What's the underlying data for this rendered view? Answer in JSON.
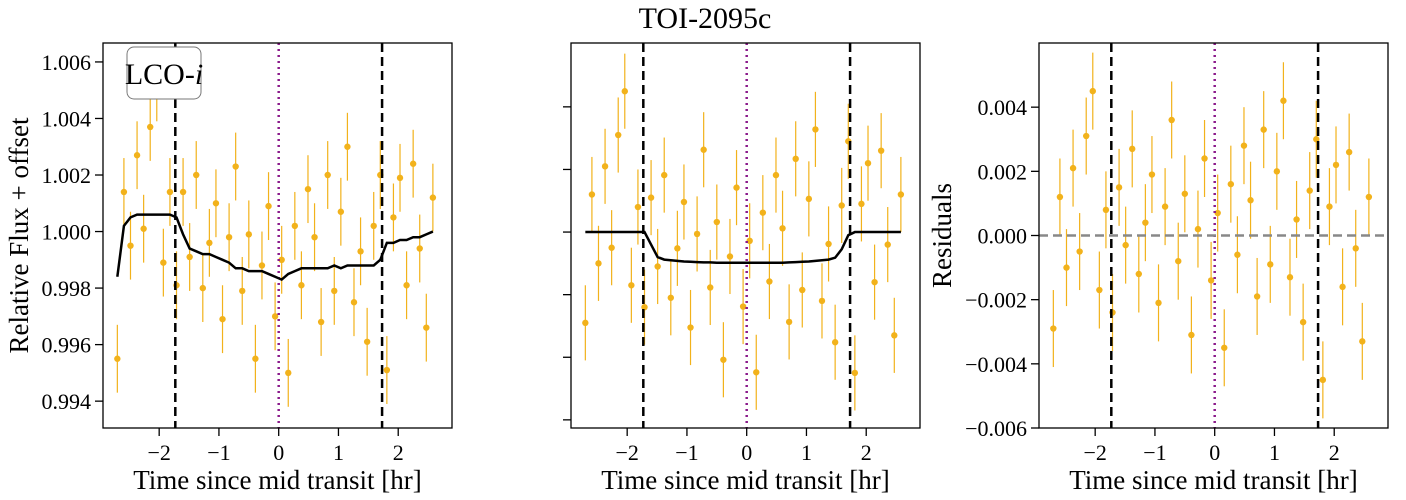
{
  "chart_data": [
    {
      "type": "scatter",
      "ylabel": "Relative Flux + offset",
      "xlabel": "Time since mid transit [hr]",
      "annotation": {
        "text": "LCO-",
        "band": "i"
      },
      "xlim": [
        -2.94,
        2.9
      ],
      "ylim": [
        0.99305,
        1.00667
      ],
      "xticks": [
        {
          "value": -2,
          "label": "−2"
        },
        {
          "value": -1,
          "label": "−1"
        },
        0,
        1,
        2
      ],
      "yticks": [
        0.994,
        0.996,
        0.998,
        {
          "value": 1.0,
          "label": "1.000"
        },
        1.002,
        1.004,
        1.006
      ],
      "show_ytick_labels": true,
      "color": "#f2b21b",
      "yerr": 0.0012,
      "transit_bounds": [
        -1.73,
        1.73
      ],
      "mid_transit": 0,
      "x": [
        -2.7,
        -2.59,
        -2.48,
        -2.37,
        -2.26,
        -2.15,
        -2.04,
        -1.93,
        -1.82,
        -1.71,
        -1.6,
        -1.49,
        -1.38,
        -1.27,
        -1.16,
        -1.05,
        -0.94,
        -0.83,
        -0.72,
        -0.61,
        -0.5,
        -0.39,
        -0.28,
        -0.17,
        -0.06,
        0.05,
        0.16,
        0.27,
        0.38,
        0.49,
        0.6,
        0.71,
        0.82,
        0.93,
        1.04,
        1.15,
        1.26,
        1.37,
        1.48,
        1.59,
        1.7,
        1.81,
        1.92,
        2.03,
        2.14,
        2.25,
        2.36,
        2.47,
        2.58
      ],
      "values": [
        0.9955,
        1.0014,
        0.9995,
        1.0027,
        1.0001,
        1.0037,
        1.0051,
        0.9989,
        1.0014,
        0.9981,
        1.0014,
        0.9991,
        1.002,
        0.998,
        0.9996,
        1.001,
        0.9969,
        0.9998,
        1.0023,
        0.9979,
        0.9999,
        0.9955,
        0.9988,
        1.0009,
        0.997,
        0.999,
        0.995,
        1.0002,
        0.9981,
        1.0015,
        0.9998,
        0.9968,
        1.002,
        0.9979,
        1.0007,
        1.003,
        0.9975,
        0.9993,
        0.9961,
        1.0002,
        1.002,
        0.9951,
        1.0005,
        1.0019,
        0.9981,
        1.0024,
        0.9994,
        0.9966,
        1.0012
      ],
      "model": {
        "color": "#000000",
        "values": [
          0.9984,
          1.0002,
          1.0005,
          1.0006,
          1.0006,
          1.0006,
          1.0006,
          1.0006,
          1.0006,
          1.0005,
          0.9999,
          0.9994,
          0.9993,
          0.9992,
          0.9992,
          0.9991,
          0.999,
          0.9989,
          0.9987,
          0.9987,
          0.9986,
          0.9986,
          0.9986,
          0.9985,
          0.9984,
          0.9983,
          0.9985,
          0.9986,
          0.9987,
          0.9987,
          0.9987,
          0.9987,
          0.9987,
          0.9988,
          0.9987,
          0.9988,
          0.9988,
          0.9988,
          0.9988,
          0.9988,
          0.999,
          0.9996,
          0.9996,
          0.9997,
          0.9997,
          0.9998,
          0.9998,
          0.9999,
          1.0
        ]
      }
    },
    {
      "type": "scatter",
      "title": "TOI-2095c",
      "xlabel": "Time since mid transit [hr]",
      "xlim": [
        -2.94,
        2.9
      ],
      "ylim": [
        0.99374,
        1.00604
      ],
      "xticks": [
        {
          "value": -2,
          "label": "−2"
        },
        {
          "value": -1,
          "label": "−1"
        },
        0,
        1,
        2
      ],
      "yticks": [
        0.994,
        0.996,
        0.998,
        1.0,
        1.002,
        1.004
      ],
      "show_ytick_labels": false,
      "color": "#f2b21b",
      "yerr": 0.0012,
      "transit_bounds": [
        -1.73,
        1.73
      ],
      "mid_transit": 0,
      "x": [
        -2.7,
        -2.59,
        -2.48,
        -2.37,
        -2.26,
        -2.15,
        -2.04,
        -1.93,
        -1.82,
        -1.71,
        -1.6,
        -1.49,
        -1.38,
        -1.27,
        -1.16,
        -1.05,
        -0.94,
        -0.83,
        -0.72,
        -0.61,
        -0.5,
        -0.39,
        -0.28,
        -0.17,
        -0.06,
        0.05,
        0.16,
        0.27,
        0.38,
        0.49,
        0.6,
        0.71,
        0.82,
        0.93,
        1.04,
        1.15,
        1.26,
        1.37,
        1.48,
        1.59,
        1.7,
        1.81,
        1.92,
        2.03,
        2.14,
        2.25,
        2.36,
        2.47,
        2.58
      ],
      "values": [
        0.9971,
        1.0012,
        0.999,
        1.0021,
        0.9995,
        1.0031,
        1.0045,
        0.9983,
        1.0008,
        0.9976,
        1.0011,
        0.9989,
        1.00182,
        0.9979,
        0.99948,
        1.00096,
        0.99695,
        0.99994,
        1.00263,
        0.99823,
        1.00032,
        0.99592,
        0.99922,
        1.00142,
        0.99762,
        0.99972,
        0.99552,
        1.00062,
        0.99842,
        1.00182,
        1.00012,
        0.99713,
        1.00234,
        0.99815,
        1.00106,
        1.00328,
        0.9978,
        0.99962,
        0.99648,
        1.00085,
        1.0029,
        0.9955,
        1.0009,
        1.0022,
        0.9984,
        1.0026,
        0.9996,
        0.9967,
        1.0012
      ],
      "model": {
        "color": "#000000",
        "values": [
          1.0,
          1.0,
          1.0,
          1.0,
          1.0,
          1.0,
          1.0,
          1.0,
          1.0,
          1.0,
          0.9996,
          0.9992,
          0.99912,
          0.9991,
          0.99908,
          0.99906,
          0.99905,
          0.99904,
          0.99903,
          0.99903,
          0.99902,
          0.99902,
          0.99902,
          0.99902,
          0.99902,
          0.99902,
          0.99902,
          0.99902,
          0.99902,
          0.99902,
          0.99902,
          0.99903,
          0.99904,
          0.99905,
          0.99906,
          0.99908,
          0.9991,
          0.99912,
          0.99918,
          0.99945,
          0.9999,
          1.0,
          1.0,
          1.0,
          1.0,
          1.0,
          1.0,
          1.0,
          1.0
        ]
      }
    },
    {
      "type": "scatter",
      "ylabel": "Residuals",
      "xlabel": "Time since mid transit [hr]",
      "xlim": [
        -2.94,
        2.9
      ],
      "ylim": [
        -0.006,
        0.006
      ],
      "xticks": [
        {
          "value": -2,
          "label": "−2"
        },
        {
          "value": -1,
          "label": "−1"
        },
        0,
        1,
        2
      ],
      "yticks": [
        {
          "value": -0.006,
          "label": "−0.006"
        },
        {
          "value": -0.004,
          "label": "−0.004"
        },
        {
          "value": -0.002,
          "label": "−0.002"
        },
        {
          "value": 0,
          "label": "0.000"
        },
        0.002,
        0.004
      ],
      "show_ytick_labels": true,
      "color": "#f2b21b",
      "yerr": 0.0012,
      "transit_bounds": [
        -1.73,
        1.73
      ],
      "mid_transit": 0,
      "zero_line": 0,
      "x": [
        -2.7,
        -2.59,
        -2.48,
        -2.37,
        -2.26,
        -2.15,
        -2.04,
        -1.93,
        -1.82,
        -1.71,
        -1.6,
        -1.49,
        -1.38,
        -1.27,
        -1.16,
        -1.05,
        -0.94,
        -0.83,
        -0.72,
        -0.61,
        -0.5,
        -0.39,
        -0.28,
        -0.17,
        -0.06,
        0.05,
        0.16,
        0.27,
        0.38,
        0.49,
        0.6,
        0.71,
        0.82,
        0.93,
        1.04,
        1.15,
        1.26,
        1.37,
        1.48,
        1.59,
        1.7,
        1.81,
        1.92,
        2.03,
        2.14,
        2.25,
        2.36,
        2.47,
        2.58
      ],
      "values": [
        -0.0029,
        0.0012,
        -0.001,
        0.0021,
        -0.0005,
        0.0031,
        0.0045,
        -0.0017,
        0.0008,
        -0.0024,
        0.0015,
        -0.0003,
        0.0027,
        -0.0012,
        0.0004,
        0.0019,
        -0.0021,
        0.0009,
        0.0036,
        -0.0008,
        0.0013,
        -0.0031,
        0.0002,
        0.0024,
        -0.0014,
        0.0007,
        -0.0035,
        0.0016,
        -0.0006,
        0.0028,
        0.0011,
        -0.0019,
        0.0033,
        -0.0009,
        0.002,
        0.0042,
        -0.0013,
        0.0005,
        -0.0027,
        0.0014,
        0.003,
        -0.0045,
        0.0009,
        0.0022,
        -0.0016,
        0.0026,
        -0.0004,
        -0.0033,
        0.0012
      ]
    }
  ]
}
